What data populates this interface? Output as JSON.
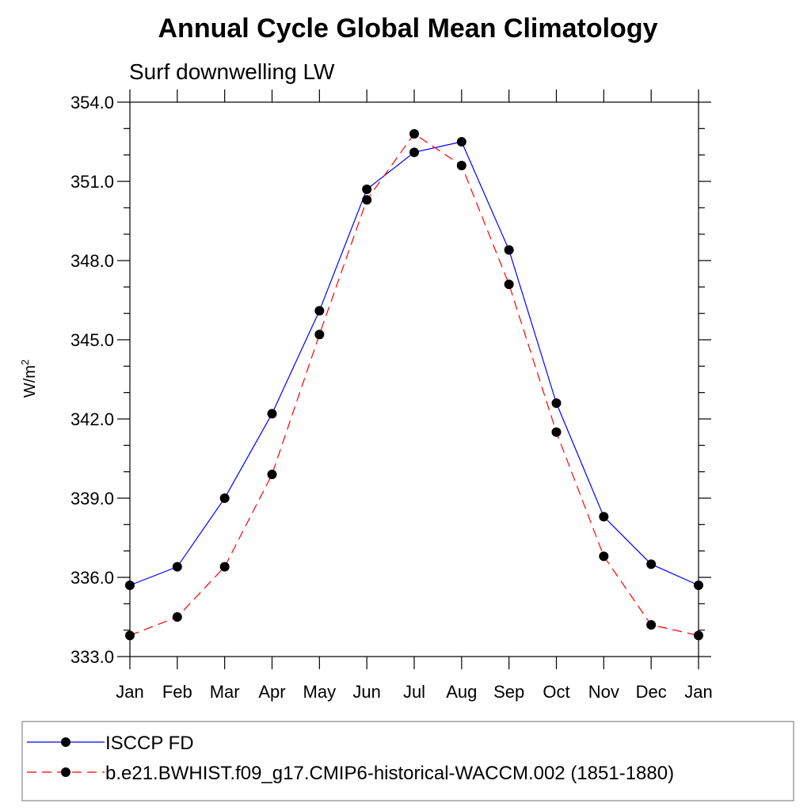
{
  "chart_data": {
    "type": "line",
    "title": "Annual Cycle Global Mean Climatology",
    "subtitle": "Surf downwelling LW",
    "ylabel": "W/m",
    "ylabel_sup": "2",
    "xlabel": "",
    "categories": [
      "Jan",
      "Feb",
      "Mar",
      "Apr",
      "May",
      "Jun",
      "Jul",
      "Aug",
      "Sep",
      "Oct",
      "Nov",
      "Dec",
      "Jan"
    ],
    "ylim": [
      333.0,
      354.0
    ],
    "yticks": [
      "333.0",
      "336.0",
      "339.0",
      "342.0",
      "345.0",
      "348.0",
      "351.0",
      "354.0"
    ],
    "grid": false,
    "legend_position": "bottom",
    "series": [
      {
        "name": "ISCCP FD",
        "color": "#0000ff",
        "dash": "solid",
        "marker": "filled-circle",
        "values": [
          335.7,
          336.4,
          339.0,
          342.2,
          346.1,
          350.7,
          352.1,
          352.5,
          348.4,
          342.6,
          338.3,
          336.5,
          335.7
        ]
      },
      {
        "name": "b.e21.BWHIST.f09_g17.CMIP6-historical-WACCM.002 (1851-1880)",
        "color": "#ff0000",
        "dash": "dashed",
        "marker": "filled-circle",
        "values": [
          333.8,
          334.5,
          336.4,
          339.9,
          345.2,
          350.3,
          352.8,
          351.6,
          347.1,
          341.5,
          336.8,
          334.2,
          333.8
        ]
      }
    ]
  }
}
